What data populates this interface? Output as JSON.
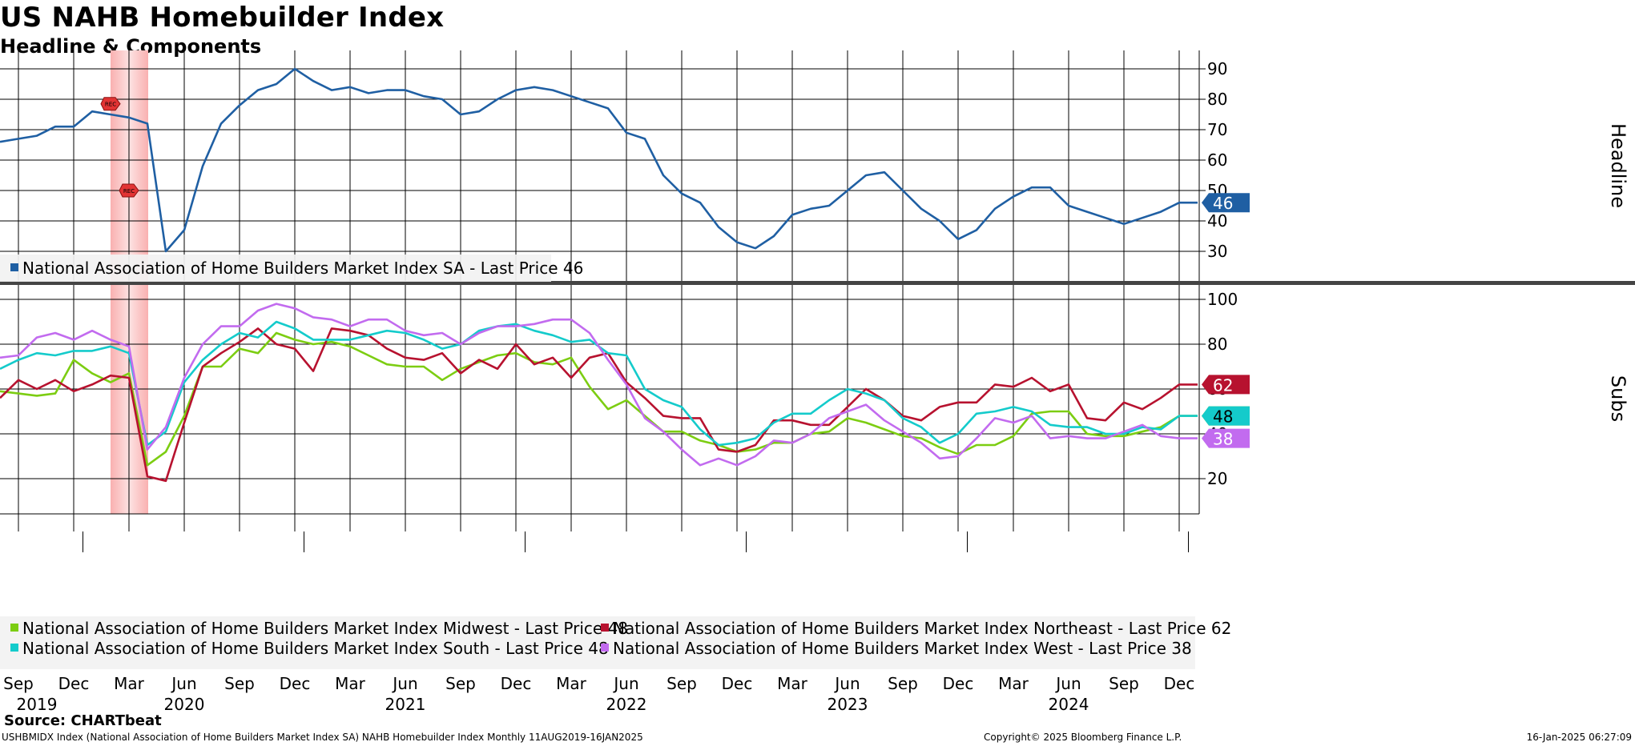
{
  "title": "US NAHB Homebuilder Index",
  "subtitle": "Headline & Components",
  "source": "Source: CHARTbeat",
  "footer": {
    "left": "USHBMIDX Index (National Association of Home Builders Market Index SA) NAHB Homebuilder Index  Monthly 11AUG2019-16JAN2025",
    "mid": "Copyright© 2025 Bloomberg Finance L.P.",
    "right": "16-Jan-2025 06:27:09"
  },
  "recession_marker": "REC",
  "chart_data": {
    "type": "line",
    "x": [
      "2019-08",
      "2019-09",
      "2019-10",
      "2019-11",
      "2019-12",
      "2020-01",
      "2020-02",
      "2020-03",
      "2020-04",
      "2020-05",
      "2020-06",
      "2020-07",
      "2020-08",
      "2020-09",
      "2020-10",
      "2020-11",
      "2020-12",
      "2021-01",
      "2021-02",
      "2021-03",
      "2021-04",
      "2021-05",
      "2021-06",
      "2021-07",
      "2021-08",
      "2021-09",
      "2021-10",
      "2021-11",
      "2021-12",
      "2022-01",
      "2022-02",
      "2022-03",
      "2022-04",
      "2022-05",
      "2022-06",
      "2022-07",
      "2022-08",
      "2022-09",
      "2022-10",
      "2022-11",
      "2022-12",
      "2023-01",
      "2023-02",
      "2023-03",
      "2023-04",
      "2023-05",
      "2023-06",
      "2023-07",
      "2023-08",
      "2023-09",
      "2023-10",
      "2023-11",
      "2023-12",
      "2024-01",
      "2024-02",
      "2024-03",
      "2024-04",
      "2024-05",
      "2024-06",
      "2024-07",
      "2024-08",
      "2024-09",
      "2024-10",
      "2024-11",
      "2024-12",
      "2025-01"
    ],
    "x_tick_labels": [
      "Sep",
      "Dec",
      "Mar",
      "Jun",
      "Sep",
      "Dec",
      "Mar",
      "Jun",
      "Sep",
      "Dec",
      "Mar",
      "Jun",
      "Sep",
      "Dec",
      "Mar",
      "Jun",
      "Sep",
      "Dec",
      "Mar",
      "Jun",
      "Sep",
      "Dec"
    ],
    "x_tick_months": [
      "2019-09",
      "2019-12",
      "2020-03",
      "2020-06",
      "2020-09",
      "2020-12",
      "2021-03",
      "2021-06",
      "2021-09",
      "2021-12",
      "2022-03",
      "2022-06",
      "2022-09",
      "2022-12",
      "2023-03",
      "2023-06",
      "2023-09",
      "2023-12",
      "2024-03",
      "2024-06",
      "2024-09",
      "2024-12"
    ],
    "x_year_labels": [
      "2019",
      "2020",
      "2021",
      "2022",
      "2023",
      "2024"
    ],
    "x_year_months": [
      "2019-10",
      "2020-06",
      "2021-06",
      "2022-06",
      "2023-06",
      "2024-06"
    ],
    "recession_shading": {
      "start": "2020-02",
      "end": "2020-04"
    },
    "panels": [
      {
        "axis_label": "Headline",
        "ylim": [
          22,
          95
        ],
        "yticks": [
          30,
          40,
          50,
          60,
          70,
          80,
          90
        ],
        "grid": true,
        "legend_position": "bottom-left",
        "series": [
          {
            "name": "National Association of Home Builders Market Index SA - Last Price 46",
            "color": "#1f5fa3",
            "last": "46",
            "values": [
              66,
              67,
              68,
              71,
              71,
              76,
              75,
              74,
              72,
              30,
              37,
              58,
              72,
              78,
              83,
              85,
              90,
              86,
              83,
              84,
              82,
              83,
              83,
              81,
              80,
              75,
              76,
              80,
              83,
              84,
              83,
              81,
              79,
              77,
              69,
              67,
              55,
              49,
              46,
              38,
              33,
              31,
              35,
              42,
              44,
              45,
              50,
              55,
              56,
              50,
              44,
              40,
              34,
              37,
              44,
              48,
              51,
              51,
              45,
              43,
              41,
              39,
              41,
              43,
              46,
              46
            ]
          }
        ]
      },
      {
        "axis_label": "Subs",
        "ylim": [
          10,
          105
        ],
        "yticks": [
          20,
          40,
          60,
          80,
          100
        ],
        "grid": true,
        "legend_position": "bottom-left",
        "series": [
          {
            "name": "National Association of Home Builders Market Index Midwest - Last Price 48",
            "legend_label": "National Association of Home Builders Market Index Midwest - Last Price 48",
            "color": "#7ccd12",
            "last": "48",
            "values": [
              59,
              58,
              57,
              58,
              73,
              67,
              63,
              67,
              26,
              32,
              48,
              70,
              70,
              78,
              76,
              85,
              82,
              80,
              81,
              79,
              75,
              71,
              70,
              70,
              64,
              69,
              72,
              75,
              76,
              72,
              71,
              74,
              61,
              51,
              55,
              48,
              41,
              41,
              37,
              35,
              32,
              33,
              36,
              36,
              40,
              41,
              47,
              45,
              42,
              39,
              38,
              34,
              31,
              35,
              35,
              39,
              49,
              50,
              50,
              40,
              39,
              39,
              41,
              43,
              48,
              48
            ]
          },
          {
            "name": "National Association of Home Builders Market Index Northeast - Last Price 62",
            "legend_label": "National Association of Home Builders Market Index Northeast - Last Price 62",
            "color": "#b7122f",
            "last": "62",
            "values": [
              56,
              64,
              60,
              64,
              59,
              62,
              66,
              65,
              21,
              19,
              45,
              70,
              76,
              81,
              87,
              80,
              78,
              68,
              87,
              86,
              84,
              78,
              74,
              73,
              76,
              67,
              73,
              69,
              80,
              71,
              74,
              65,
              74,
              76,
              63,
              56,
              48,
              47,
              47,
              33,
              32,
              35,
              46,
              46,
              44,
              44,
              52,
              60,
              55,
              48,
              46,
              52,
              54,
              54,
              62,
              61,
              65,
              59,
              62,
              47,
              46,
              54,
              51,
              56,
              62,
              62
            ]
          },
          {
            "name": "National Association of Home Builders Market Index South - Last Price 48",
            "legend_label": "National Association of Home Builders Market Index South  - Last Price      48",
            "color": "#14cbcb",
            "last": "48",
            "values": [
              69,
              73,
              76,
              75,
              77,
              77,
              79,
              76,
              35,
              41,
              63,
              73,
              80,
              85,
              83,
              90,
              87,
              82,
              82,
              82,
              84,
              86,
              85,
              82,
              78,
              80,
              86,
              88,
              89,
              86,
              84,
              81,
              82,
              76,
              75,
              60,
              55,
              52,
              42,
              35,
              36,
              38,
              45,
              49,
              49,
              55,
              60,
              58,
              55,
              47,
              43,
              36,
              40,
              49,
              50,
              52,
              50,
              44,
              43,
              43,
              40,
              40,
              43,
              42,
              48,
              48
            ]
          },
          {
            "name": "National Association of Home Builders Market Index West - Last Price 38",
            "legend_label": "National Association of Home Builders Market Index West - Last Price       38",
            "color": "#c26bef",
            "last": "38",
            "values": [
              74,
              75,
              83,
              85,
              82,
              86,
              82,
              79,
              33,
              43,
              65,
              80,
              88,
              88,
              95,
              98,
              96,
              92,
              91,
              88,
              91,
              91,
              86,
              84,
              85,
              80,
              85,
              88,
              88,
              89,
              91,
              91,
              85,
              73,
              62,
              47,
              41,
              33,
              26,
              29,
              26,
              30,
              37,
              36,
              40,
              47,
              50,
              53,
              46,
              41,
              36,
              29,
              30,
              38,
              47,
              45,
              48,
              38,
              39,
              38,
              38,
              41,
              44,
              39,
              38,
              38
            ]
          }
        ]
      }
    ]
  }
}
